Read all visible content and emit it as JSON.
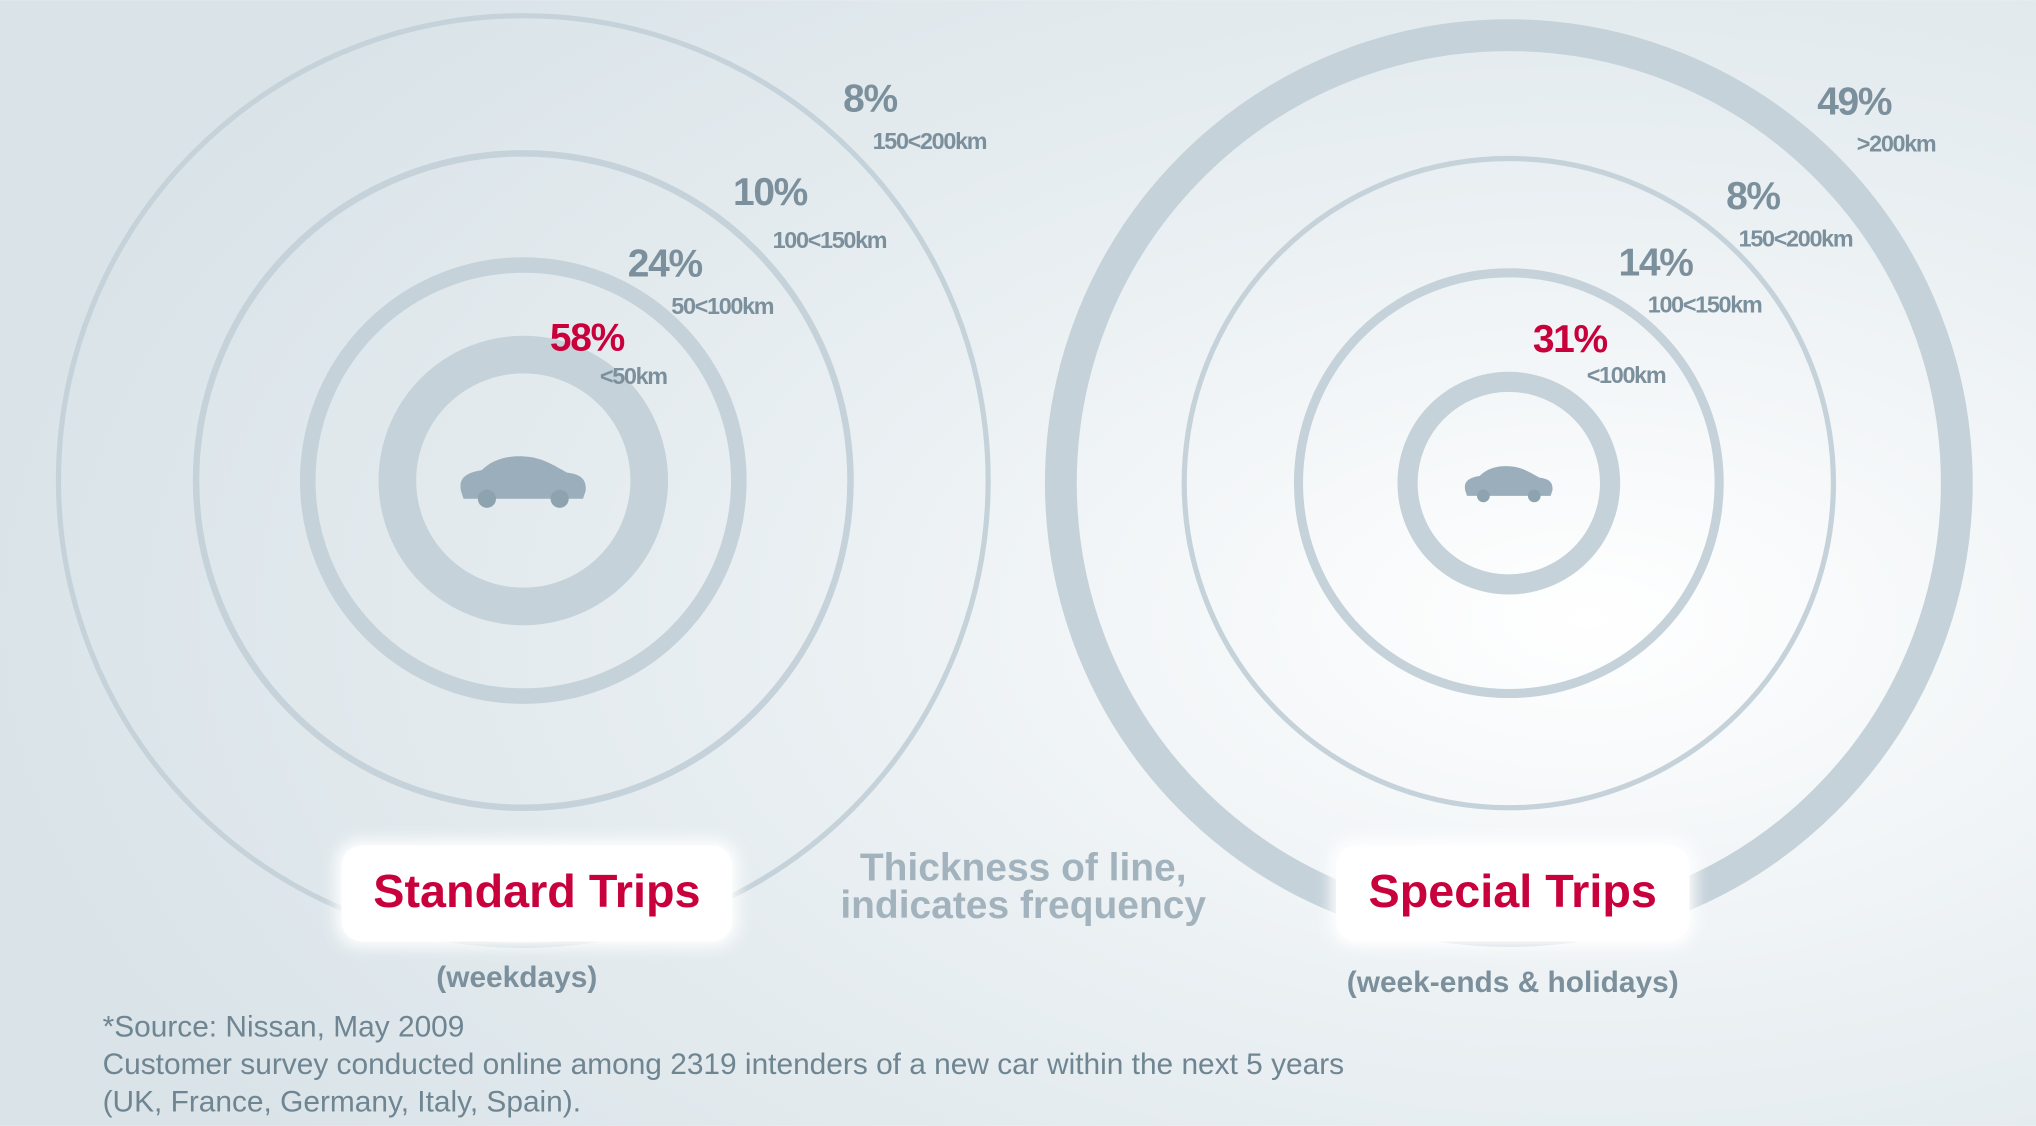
{
  "chart_data": [
    {
      "type": "rings",
      "title": "Standard Trips",
      "subtitle": "(weekdays)",
      "categories": [
        "<50km",
        "50<100km",
        "100<150km",
        "150<200km"
      ],
      "values": [
        58,
        24,
        10,
        8
      ],
      "value_labels": [
        "58%",
        "24%",
        "10%",
        "8%"
      ],
      "color": "#c5d2da",
      "label_colors": [
        "#c8003c",
        "#7b909c",
        "#7b909c",
        "#7b909c"
      ]
    },
    {
      "type": "rings",
      "title": "Special Trips",
      "subtitle": "(week-ends & holidays)",
      "categories": [
        "<100km",
        "100<150km",
        "150<200km",
        ">200km"
      ],
      "values": [
        31,
        14,
        8,
        49
      ],
      "value_labels": [
        "31%",
        "14%",
        "8%",
        "49%"
      ],
      "color": "#c5d2da",
      "label_colors": [
        "#c8003c",
        "#7b909c",
        "#7b909c",
        "#7b909c"
      ]
    }
  ],
  "annotation": [
    "Thickness of line,",
    "indicates frequency"
  ],
  "source": [
    "*Source: Nissan, May 2009",
    "Customer survey conducted online among 2319 intenders of a new car within the next 5 years",
    "(UK, France, Germany, Italy, Spain)."
  ]
}
